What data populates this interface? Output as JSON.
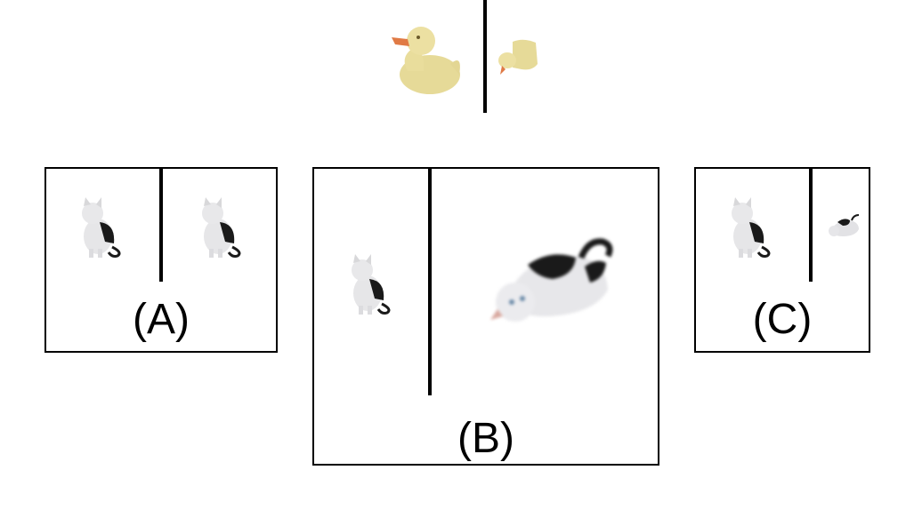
{
  "reference": {
    "images": [
      "rubber-duck",
      "rubber-duck-small-turned"
    ]
  },
  "panels": [
    {
      "label": "(A)",
      "left": "cat-sitting",
      "right": "cat-sitting-same"
    },
    {
      "label": "(B)",
      "left": "cat-sitting",
      "right": "cat-lying-large-rotated-blurred"
    },
    {
      "label": "(C)",
      "left": "cat-sitting",
      "right": "cat-lying-small"
    }
  ],
  "colors": {
    "duck_body": "#e9dd9c",
    "duck_beak": "#e07a45",
    "cat_white": "#e8e8ea",
    "cat_black": "#1a1a1a",
    "border": "#000000"
  }
}
